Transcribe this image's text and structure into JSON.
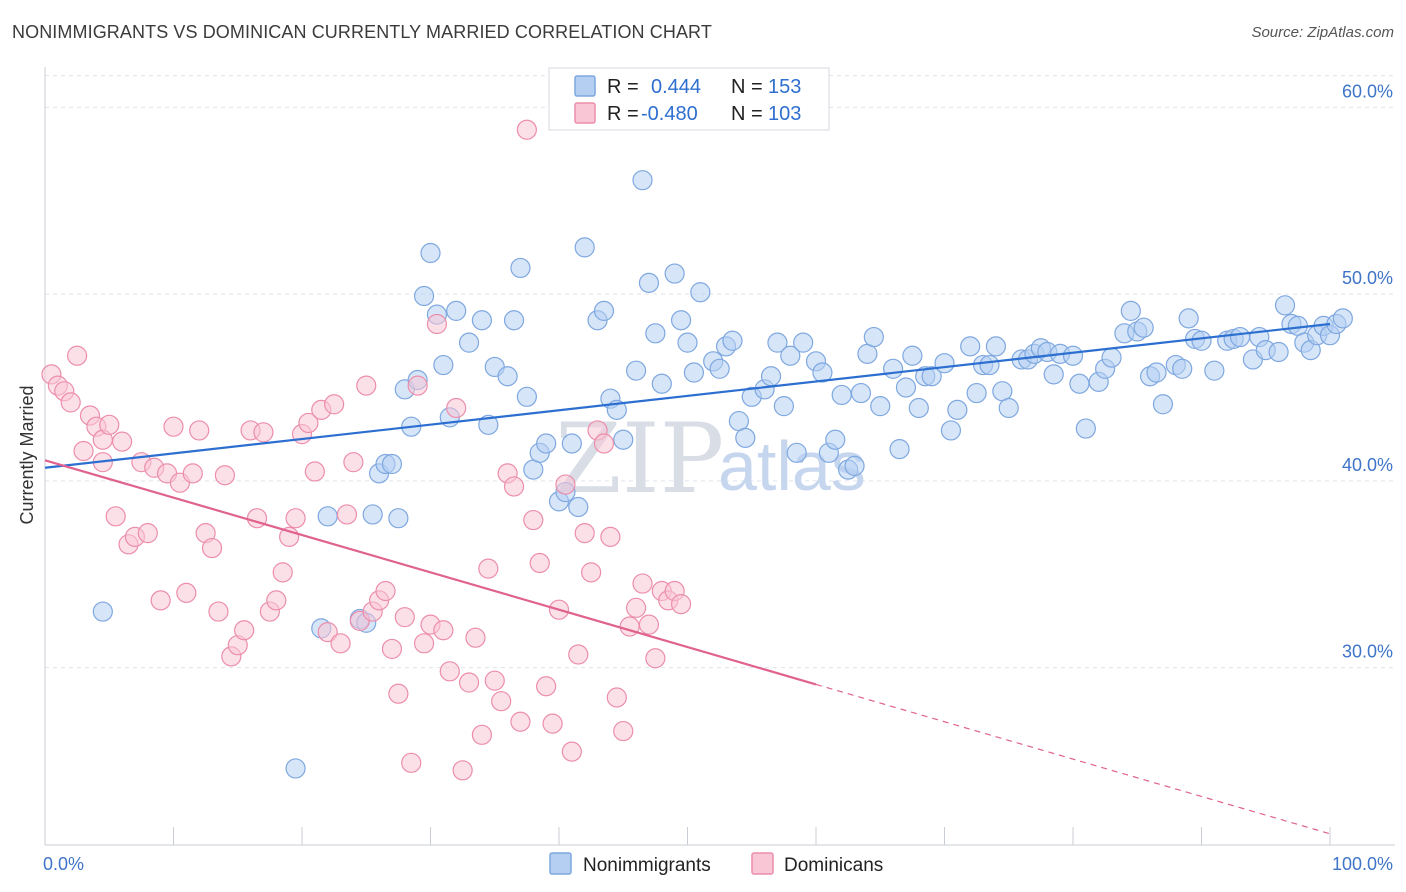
{
  "title": "NONIMMIGRANTS VS DOMINICAN CURRENTLY MARRIED CORRELATION CHART",
  "source": "Source: ZipAtlas.com",
  "watermark": {
    "zip": "ZIP",
    "atlas": "atlas"
  },
  "chart_data": {
    "type": "scatter",
    "xlabel": "",
    "ylabel": "Currently Married",
    "xlim": [
      0,
      100
    ],
    "ylim": [
      20.5,
      62.0
    ],
    "x_tick_labels": [
      "0.0%",
      "100.0%"
    ],
    "y_ticks": [
      30,
      40,
      50,
      60
    ],
    "y_tick_labels": [
      "30.0%",
      "40.0%",
      "50.0%",
      "60.0%"
    ],
    "grid": true,
    "legend_position": "top-center",
    "legend": {
      "r_label": "R =",
      "n_label": "N =",
      "rows": [
        {
          "name": "Nonimmigrants",
          "r": "0.444",
          "n": "153",
          "color": "#a9c8f0"
        },
        {
          "name": "Dominicans",
          "r": "-0.480",
          "n": "103",
          "color": "#f5b8cb"
        }
      ]
    },
    "series": [
      {
        "name": "Nonimmigrants",
        "color": "#7fa8e0",
        "fill": "#b5cff2",
        "trend": {
          "x0": 0,
          "y0": 40.7,
          "x1": 100,
          "y1": 48.4,
          "color": "#2c6fd0",
          "solid_until": 100
        },
        "points": [
          [
            4.5,
            33.0
          ],
          [
            19.5,
            24.6
          ],
          [
            21.5,
            32.1
          ],
          [
            22.0,
            38.1
          ],
          [
            24.5,
            32.6
          ],
          [
            25.0,
            32.4
          ],
          [
            25.5,
            38.2
          ],
          [
            26.0,
            40.4
          ],
          [
            26.5,
            40.9
          ],
          [
            27.0,
            40.9
          ],
          [
            27.5,
            38.0
          ],
          [
            28.0,
            44.9
          ],
          [
            28.5,
            42.9
          ],
          [
            29.0,
            45.4
          ],
          [
            29.5,
            49.9
          ],
          [
            30.0,
            52.2
          ],
          [
            30.5,
            48.9
          ],
          [
            31.0,
            46.2
          ],
          [
            31.5,
            43.4
          ],
          [
            32.0,
            49.1
          ],
          [
            33.0,
            47.4
          ],
          [
            34.0,
            48.6
          ],
          [
            34.5,
            43.0
          ],
          [
            35.0,
            46.1
          ],
          [
            36.0,
            45.6
          ],
          [
            36.5,
            48.6
          ],
          [
            37.0,
            51.4
          ],
          [
            37.5,
            44.5
          ],
          [
            38.0,
            40.6
          ],
          [
            38.5,
            41.5
          ],
          [
            39.0,
            42.0
          ],
          [
            40.0,
            38.9
          ],
          [
            40.5,
            39.4
          ],
          [
            41.0,
            42.0
          ],
          [
            41.5,
            38.6
          ],
          [
            42.0,
            52.5
          ],
          [
            43.0,
            48.6
          ],
          [
            43.5,
            49.1
          ],
          [
            44.0,
            44.4
          ],
          [
            44.5,
            43.8
          ],
          [
            45.0,
            42.2
          ],
          [
            46.0,
            45.9
          ],
          [
            46.5,
            56.1
          ],
          [
            47.0,
            50.6
          ],
          [
            47.5,
            47.9
          ],
          [
            48.0,
            45.2
          ],
          [
            49.0,
            51.1
          ],
          [
            49.5,
            48.6
          ],
          [
            50.0,
            47.4
          ],
          [
            50.5,
            45.8
          ],
          [
            51.0,
            50.1
          ],
          [
            52.0,
            46.4
          ],
          [
            52.5,
            46.0
          ],
          [
            53.0,
            47.2
          ],
          [
            53.5,
            47.5
          ],
          [
            54.0,
            43.2
          ],
          [
            54.5,
            42.3
          ],
          [
            55.0,
            44.5
          ],
          [
            56.0,
            44.9
          ],
          [
            56.5,
            45.6
          ],
          [
            57.0,
            47.4
          ],
          [
            57.5,
            44.0
          ],
          [
            58.0,
            46.7
          ],
          [
            58.5,
            41.5
          ],
          [
            59.0,
            47.4
          ],
          [
            60.0,
            46.4
          ],
          [
            60.5,
            45.8
          ],
          [
            61.0,
            41.5
          ],
          [
            61.5,
            42.2
          ],
          [
            62.0,
            44.6
          ],
          [
            62.5,
            40.6
          ],
          [
            63.0,
            40.8
          ],
          [
            63.5,
            44.7
          ],
          [
            64.0,
            46.8
          ],
          [
            64.5,
            47.7
          ],
          [
            65.0,
            44.0
          ],
          [
            66.0,
            46.0
          ],
          [
            66.5,
            41.7
          ],
          [
            67.0,
            45.0
          ],
          [
            67.5,
            46.7
          ],
          [
            68.0,
            43.9
          ],
          [
            68.5,
            45.6
          ],
          [
            69.0,
            45.6
          ],
          [
            70.0,
            46.3
          ],
          [
            70.5,
            42.7
          ],
          [
            71.0,
            43.8
          ],
          [
            72.0,
            47.2
          ],
          [
            72.5,
            44.7
          ],
          [
            73.0,
            46.2
          ],
          [
            73.5,
            46.2
          ],
          [
            74.0,
            47.2
          ],
          [
            74.5,
            44.8
          ],
          [
            75.0,
            43.9
          ],
          [
            76.0,
            46.5
          ],
          [
            76.5,
            46.5
          ],
          [
            77.0,
            46.8
          ],
          [
            77.5,
            47.1
          ],
          [
            78.0,
            46.9
          ],
          [
            78.5,
            45.7
          ],
          [
            79.0,
            46.8
          ],
          [
            80.0,
            46.7
          ],
          [
            80.5,
            45.2
          ],
          [
            81.0,
            42.8
          ],
          [
            82.0,
            45.3
          ],
          [
            82.5,
            46.0
          ],
          [
            83.0,
            46.6
          ],
          [
            84.0,
            47.9
          ],
          [
            84.5,
            49.1
          ],
          [
            85.0,
            48.0
          ],
          [
            85.5,
            48.2
          ],
          [
            86.0,
            45.6
          ],
          [
            86.5,
            45.8
          ],
          [
            87.0,
            44.1
          ],
          [
            88.0,
            46.2
          ],
          [
            88.5,
            46.0
          ],
          [
            89.0,
            48.7
          ],
          [
            89.5,
            47.6
          ],
          [
            90.0,
            47.5
          ],
          [
            91.0,
            45.9
          ],
          [
            92.0,
            47.5
          ],
          [
            92.5,
            47.6
          ],
          [
            93.0,
            47.7
          ],
          [
            94.0,
            46.5
          ],
          [
            94.5,
            47.7
          ],
          [
            95.0,
            47.0
          ],
          [
            96.0,
            46.9
          ],
          [
            96.5,
            49.4
          ],
          [
            97.0,
            48.4
          ],
          [
            97.5,
            48.3
          ],
          [
            98.0,
            47.4
          ],
          [
            98.5,
            47.0
          ],
          [
            99.0,
            47.8
          ],
          [
            99.5,
            48.3
          ],
          [
            100.0,
            47.8
          ],
          [
            100.5,
            48.4
          ],
          [
            101.0,
            48.7
          ]
        ]
      },
      {
        "name": "Dominicans",
        "color": "#ec8eab",
        "fill": "#f9c6d6",
        "trend": {
          "x0": 0,
          "y0": 41.1,
          "x1": 100,
          "y1": 21.1,
          "color": "#e0628e",
          "solid_until": 60
        },
        "points": [
          [
            0.5,
            45.7
          ],
          [
            1.0,
            45.1
          ],
          [
            1.5,
            44.8
          ],
          [
            2.0,
            44.2
          ],
          [
            2.5,
            46.7
          ],
          [
            3.0,
            41.6
          ],
          [
            3.5,
            43.5
          ],
          [
            4.0,
            42.9
          ],
          [
            4.5,
            42.2
          ],
          [
            4.5,
            41.0
          ],
          [
            5.0,
            43.0
          ],
          [
            5.5,
            38.1
          ],
          [
            6.0,
            42.1
          ],
          [
            6.5,
            36.6
          ],
          [
            7.0,
            37.0
          ],
          [
            7.5,
            41.0
          ],
          [
            8.0,
            37.2
          ],
          [
            8.5,
            40.7
          ],
          [
            9.0,
            33.6
          ],
          [
            9.5,
            40.4
          ],
          [
            10.0,
            42.9
          ],
          [
            10.5,
            39.9
          ],
          [
            11.0,
            34.0
          ],
          [
            11.5,
            40.4
          ],
          [
            12.0,
            42.7
          ],
          [
            12.5,
            37.2
          ],
          [
            13.0,
            36.4
          ],
          [
            13.5,
            33.0
          ],
          [
            14.0,
            40.3
          ],
          [
            14.5,
            30.6
          ],
          [
            15.0,
            31.2
          ],
          [
            15.5,
            32.0
          ],
          [
            16.0,
            42.7
          ],
          [
            16.5,
            38.0
          ],
          [
            17.0,
            42.6
          ],
          [
            17.5,
            33.0
          ],
          [
            18.0,
            33.6
          ],
          [
            18.5,
            35.1
          ],
          [
            19.0,
            37.0
          ],
          [
            19.5,
            38.0
          ],
          [
            20.0,
            42.5
          ],
          [
            20.5,
            43.1
          ],
          [
            21.0,
            40.5
          ],
          [
            21.5,
            43.8
          ],
          [
            22.0,
            31.9
          ],
          [
            22.5,
            44.1
          ],
          [
            23.0,
            31.3
          ],
          [
            23.5,
            38.2
          ],
          [
            24.0,
            41.0
          ],
          [
            24.5,
            32.5
          ],
          [
            25.0,
            45.1
          ],
          [
            25.5,
            33.0
          ],
          [
            26.0,
            33.6
          ],
          [
            26.5,
            34.1
          ],
          [
            27.0,
            31.0
          ],
          [
            27.5,
            28.6
          ],
          [
            28.0,
            32.7
          ],
          [
            28.5,
            24.9
          ],
          [
            29.0,
            45.1
          ],
          [
            29.5,
            31.3
          ],
          [
            30.0,
            32.3
          ],
          [
            30.5,
            48.4
          ],
          [
            31.0,
            32.0
          ],
          [
            31.5,
            29.8
          ],
          [
            32.0,
            43.9
          ],
          [
            32.5,
            24.5
          ],
          [
            33.0,
            29.2
          ],
          [
            33.5,
            31.6
          ],
          [
            34.0,
            26.4
          ],
          [
            34.5,
            35.3
          ],
          [
            35.0,
            29.3
          ],
          [
            35.5,
            28.2
          ],
          [
            36.0,
            40.4
          ],
          [
            36.5,
            39.7
          ],
          [
            37.0,
            27.1
          ],
          [
            37.5,
            58.8
          ],
          [
            38.0,
            37.9
          ],
          [
            38.5,
            35.6
          ],
          [
            39.0,
            29.0
          ],
          [
            39.5,
            27.0
          ],
          [
            40.0,
            33.1
          ],
          [
            40.5,
            39.8
          ],
          [
            41.0,
            25.5
          ],
          [
            41.5,
            30.7
          ],
          [
            42.0,
            37.2
          ],
          [
            42.5,
            35.1
          ],
          [
            43.0,
            42.7
          ],
          [
            43.5,
            42.0
          ],
          [
            44.0,
            37.0
          ],
          [
            44.5,
            28.4
          ],
          [
            45.0,
            26.6
          ],
          [
            45.5,
            32.2
          ],
          [
            46.0,
            33.2
          ],
          [
            46.5,
            34.5
          ],
          [
            47.0,
            32.3
          ],
          [
            47.5,
            30.5
          ],
          [
            48.0,
            34.1
          ],
          [
            48.5,
            33.6
          ],
          [
            49.0,
            34.1
          ],
          [
            49.5,
            33.4
          ]
        ]
      }
    ]
  },
  "colors": {
    "grid": "#dfe3ea",
    "axis": "#c8cdd6",
    "tick_text": "#3f74c8"
  }
}
